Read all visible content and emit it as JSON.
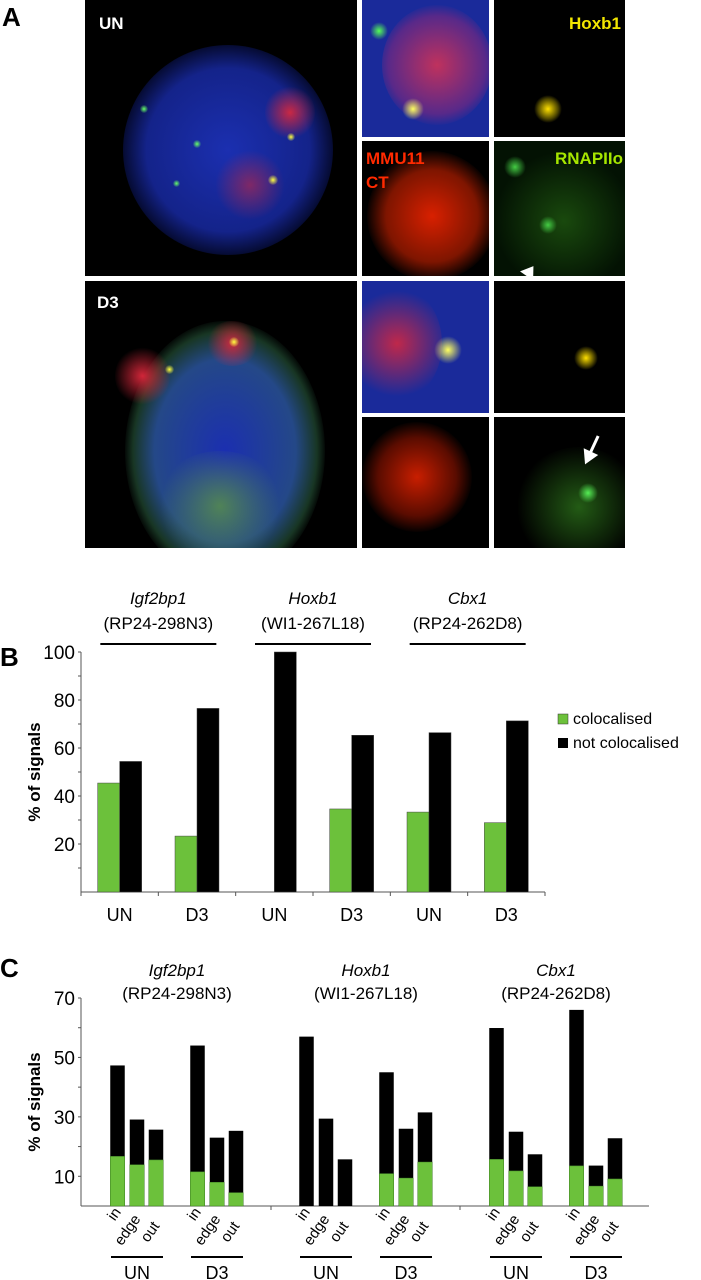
{
  "panel_a": {
    "letter": "A",
    "labels": {
      "un": "UN",
      "d3": "D3",
      "hoxb1": "Hoxb1",
      "mmu11": "MMU11",
      "ct": "CT",
      "rnapiio": "RNAPIIo"
    },
    "colors": {
      "hoxb1": "#f2e600",
      "mmu11": "#ff2a00",
      "rnapiio": "#a6e600",
      "label": "#ffffff"
    }
  },
  "chart_data": [
    {
      "panel": "B",
      "type": "bar",
      "ylabel": "% of signals",
      "ylim": [
        0,
        100
      ],
      "yticks": [
        20,
        40,
        60,
        80,
        100
      ],
      "grid": false,
      "legend_position": "right",
      "categories": [
        "UN",
        "D3",
        "UN",
        "D3",
        "UN",
        "D3"
      ],
      "groups": [
        {
          "gene": "Igf2bp1",
          "clone": "(RP24-298N3)"
        },
        {
          "gene": "Hoxb1",
          "clone": "(WI1-267L18)"
        },
        {
          "gene": "Cbx1",
          "clone": "(RP24-262D8)"
        }
      ],
      "series": [
        {
          "name": "colocalised",
          "color": "#6cc13b",
          "values": [
            45.4,
            23.3,
            0,
            34.6,
            33.3,
            28.9
          ]
        },
        {
          "name": "not colocalised",
          "color": "#000000",
          "values": [
            54.4,
            76.5,
            100,
            65.3,
            66.4,
            71.3
          ]
        }
      ]
    },
    {
      "panel": "C",
      "type": "bar",
      "stacked": true,
      "ylabel": "% of signals",
      "ylim": [
        0,
        70
      ],
      "yticks": [
        10,
        30,
        50,
        70
      ],
      "grid": false,
      "groups": [
        {
          "gene": "Igf2bp1",
          "clone": "(RP24-298N3)"
        },
        {
          "gene": "Hoxb1",
          "clone": "(WI1-267L18)"
        },
        {
          "gene": "Cbx1",
          "clone": "(RP24-262D8)"
        }
      ],
      "conditions": [
        "UN",
        "D3"
      ],
      "positions": [
        "in",
        "edge",
        "out"
      ],
      "colors": {
        "colocalised": "#6cc13b",
        "not_colocalised": "#000000"
      },
      "clusters": [
        {
          "condition": "UN",
          "total": [
            47.3,
            29.1,
            25.7
          ],
          "colocalised": [
            16.7,
            13.9,
            15.5
          ]
        },
        {
          "condition": "D3",
          "total": [
            54.0,
            23.0,
            25.3
          ],
          "colocalised": [
            11.5,
            8.0,
            4.5
          ]
        },
        {
          "condition": "UN",
          "total": [
            57.0,
            29.4,
            15.7
          ],
          "colocalised": [
            0,
            0,
            0
          ]
        },
        {
          "condition": "D3",
          "total": [
            45.0,
            26.0,
            31.5
          ],
          "colocalised": [
            10.9,
            9.4,
            14.8
          ]
        },
        {
          "condition": "UN",
          "total": [
            59.9,
            25.0,
            17.4
          ],
          "colocalised": [
            15.7,
            11.8,
            6.5
          ]
        },
        {
          "condition": "D3",
          "total": [
            66.0,
            13.6,
            22.8
          ],
          "colocalised": [
            13.5,
            6.7,
            9.1
          ]
        }
      ]
    }
  ]
}
